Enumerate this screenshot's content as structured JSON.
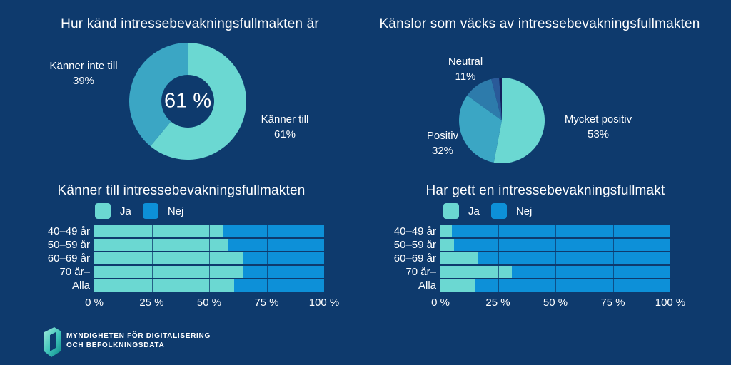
{
  "colors": {
    "background": "#0e3a6d",
    "text": "#ffffff",
    "teal": "#6bd8d2",
    "dark_teal": "#3ba6c4",
    "steel_blue": "#2d7bab",
    "dark_blue": "#2a5a99",
    "navy_dark": "#131f5c",
    "blue": "#0d90d8"
  },
  "logo": {
    "line1": "MYNDIGHETEN FÖR DIGITALISERING",
    "line2": "OCH BEFOLKNINGSDATA"
  },
  "chart_data": [
    {
      "type": "donut",
      "title": "Hur känd intressebevakningsfullmakten är",
      "center_label": "61 %",
      "slices": [
        {
          "label": "Känner till",
          "pct_label": "61%",
          "value": 61,
          "color_key": "teal"
        },
        {
          "label": "Känner inte till",
          "pct_label": "39%",
          "value": 39,
          "color_key": "dark_teal"
        }
      ]
    },
    {
      "type": "pie",
      "title": "Känslor som väcks av intressebevakningsfullmakten",
      "slices": [
        {
          "label": "Mycket positiv",
          "pct_label": "53%",
          "value": 53,
          "color_key": "teal"
        },
        {
          "label": "Positiv",
          "pct_label": "32%",
          "value": 32,
          "color_key": "dark_teal"
        },
        {
          "label": "Neutral",
          "pct_label": "11%",
          "value": 11,
          "color_key": "steel_blue"
        },
        {
          "label": "",
          "pct_label": "",
          "value": 3,
          "color_key": "dark_blue"
        },
        {
          "label": "",
          "pct_label": "",
          "value": 1,
          "color_key": "navy_dark"
        }
      ]
    },
    {
      "type": "stacked_bar_h",
      "title": "Känner till intressebevakningsfullmakten",
      "legend": [
        {
          "label": "Ja",
          "color_key": "teal"
        },
        {
          "label": "Nej",
          "color_key": "blue"
        }
      ],
      "categories": [
        "40–49 år",
        "50–59 år",
        "60–69 år",
        "70 år–",
        "Alla"
      ],
      "series": [
        {
          "name": "Ja",
          "values": [
            56,
            58,
            65,
            65,
            61
          ]
        },
        {
          "name": "Nej",
          "values": [
            44,
            42,
            35,
            35,
            39
          ]
        }
      ],
      "x_ticks": [
        "0 %",
        "25 %",
        "50 %",
        "75 %",
        "100 %"
      ],
      "xlim": [
        0,
        100
      ],
      "gridlines_pct": [
        25,
        50,
        75
      ]
    },
    {
      "type": "stacked_bar_h",
      "title": "Har gett en intressebevakningsfullmakt",
      "legend": [
        {
          "label": "Ja",
          "color_key": "teal"
        },
        {
          "label": "Nej",
          "color_key": "blue"
        }
      ],
      "categories": [
        "40–49 år",
        "50–59 år",
        "60–69 år",
        "70 år–",
        "Alla"
      ],
      "series": [
        {
          "name": "Ja",
          "values": [
            5,
            6,
            16,
            31,
            15
          ]
        },
        {
          "name": "Nej",
          "values": [
            95,
            94,
            84,
            69,
            85
          ]
        }
      ],
      "x_ticks": [
        "0 %",
        "25 %",
        "50 %",
        "75 %",
        "100 %"
      ],
      "xlim": [
        0,
        100
      ],
      "gridlines_pct": [
        25,
        50,
        75
      ]
    }
  ]
}
